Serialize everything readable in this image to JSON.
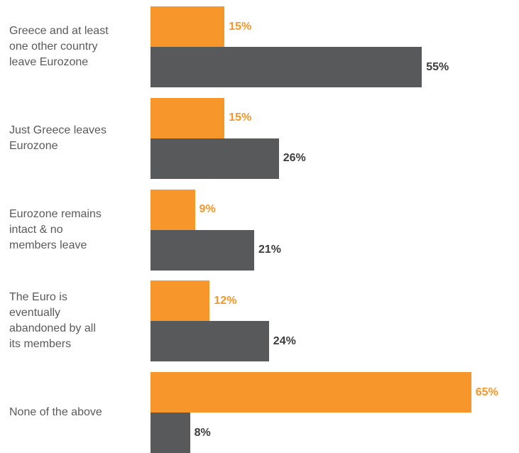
{
  "chart_data": {
    "type": "bar",
    "orientation": "horizontal",
    "categories": [
      "Greece and at least one other country leave Eurozone",
      "Just Greece leaves Eurozone",
      "Eurozone remains intact & no members leave",
      "The Euro is eventually abandoned by all its members",
      "None of the above"
    ],
    "category_lines": [
      [
        "Greece and at least",
        "one other country",
        "leave Eurozone"
      ],
      [
        "Just Greece leaves",
        "Eurozone"
      ],
      [
        "Eurozone remains",
        "intact & no",
        "members leave"
      ],
      [
        "The Euro is",
        "eventually",
        "abandoned by all",
        "its members"
      ],
      [
        "None of the above"
      ]
    ],
    "series": [
      {
        "values": [
          15,
          15,
          9,
          12,
          65
        ],
        "labels": [
          "15%",
          "15%",
          "9%",
          "12%",
          "65%"
        ],
        "color": "#f7962a"
      },
      {
        "values": [
          55,
          26,
          21,
          24,
          8
        ],
        "labels": [
          "55%",
          "26%",
          "21%",
          "24%",
          "8%"
        ],
        "color": "#58595b"
      }
    ],
    "value_unit": "%",
    "xlim": [
      0,
      65
    ],
    "grid": false,
    "legend": "none"
  }
}
